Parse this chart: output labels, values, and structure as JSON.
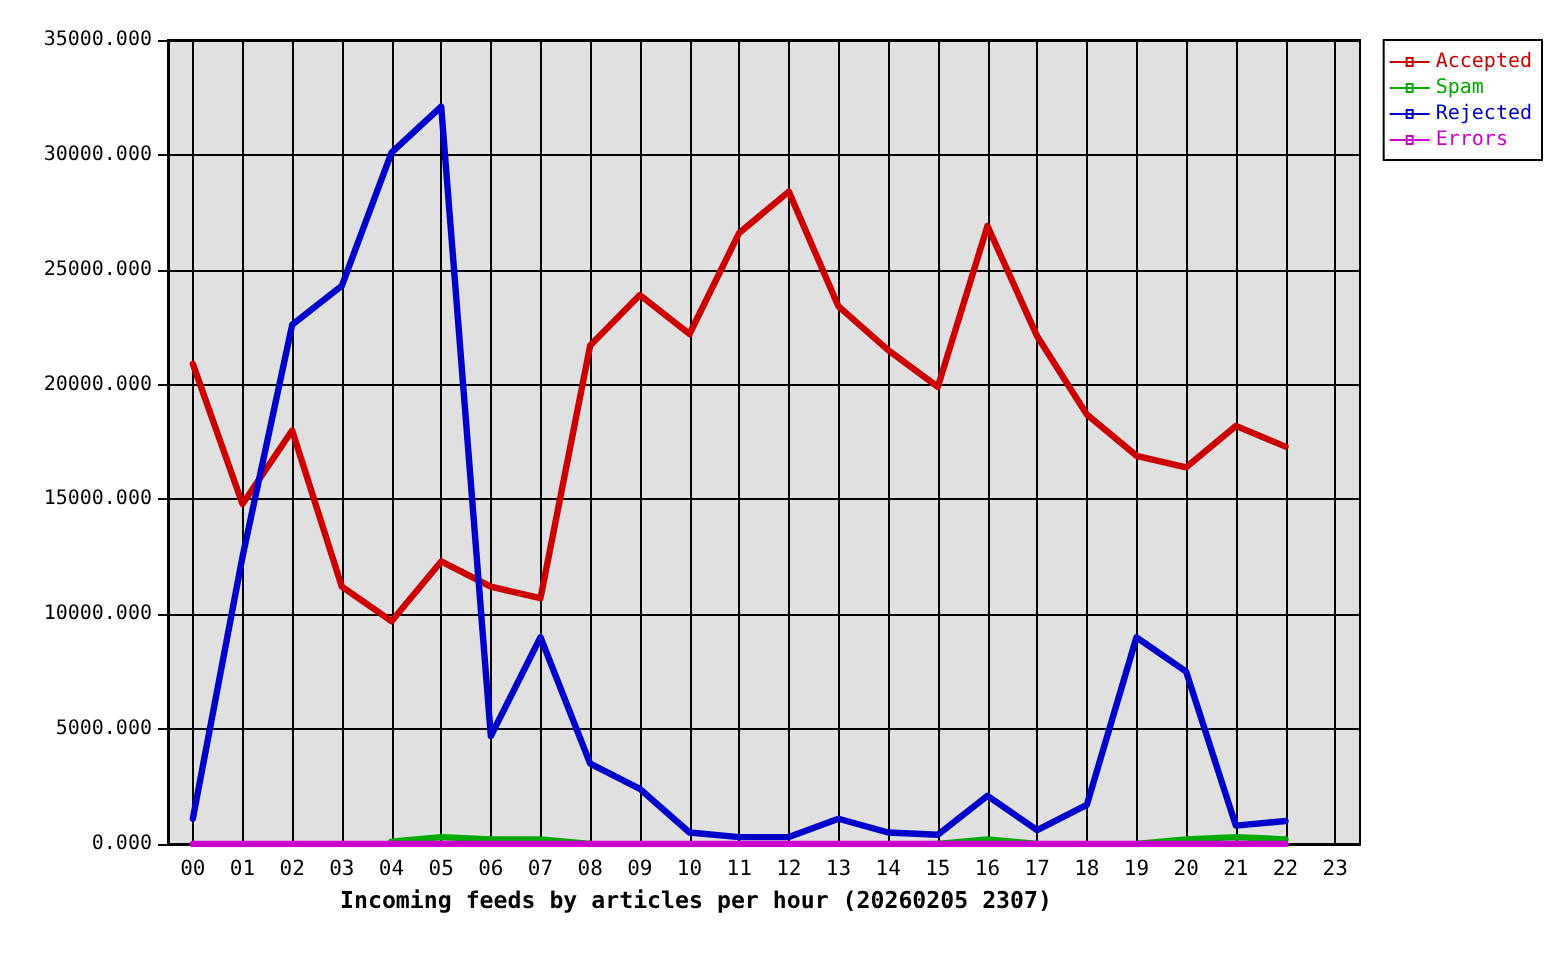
{
  "chart_data": {
    "type": "line",
    "xlabel": "Incoming feeds by articles per hour (20260205 2307)",
    "categories": [
      "00",
      "01",
      "02",
      "03",
      "04",
      "05",
      "06",
      "07",
      "08",
      "09",
      "10",
      "11",
      "12",
      "13",
      "14",
      "15",
      "16",
      "17",
      "18",
      "19",
      "20",
      "21",
      "22",
      "23"
    ],
    "series": [
      {
        "name": "Accepted",
        "color": "#cc0000",
        "values": [
          20900,
          14800,
          18000,
          11200,
          9700,
          12300,
          11200,
          10700,
          21700,
          23900,
          22200,
          26600,
          28400,
          23400,
          21500,
          19900,
          26900,
          22100,
          18700,
          16900,
          16400,
          18200,
          17300,
          null
        ]
      },
      {
        "name": "Spam",
        "color": "#00aa00",
        "values": [
          null,
          null,
          null,
          null,
          100,
          300,
          200,
          200,
          0,
          null,
          null,
          null,
          null,
          null,
          null,
          0,
          200,
          0,
          null,
          0,
          200,
          300,
          200,
          null
        ]
      },
      {
        "name": "Rejected",
        "color": "#0000cc",
        "values": [
          1100,
          12500,
          22600,
          24300,
          30100,
          32100,
          4700,
          9000,
          3500,
          2400,
          500,
          300,
          300,
          1100,
          500,
          400,
          2100,
          600,
          1700,
          9000,
          7500,
          800,
          1000,
          null
        ]
      },
      {
        "name": "Errors",
        "color": "#cc00cc",
        "values": [
          0,
          0,
          0,
          0,
          0,
          0,
          0,
          0,
          0,
          0,
          0,
          0,
          0,
          0,
          0,
          0,
          0,
          0,
          0,
          0,
          0,
          0,
          0,
          null
        ]
      }
    ],
    "ylim": [
      0,
      35000
    ],
    "yticks": [
      {
        "value": 0,
        "label": "0.000"
      },
      {
        "value": 5000,
        "label": "5000.000"
      },
      {
        "value": 10000,
        "label": "10000.000"
      },
      {
        "value": 15000,
        "label": "15000.000"
      },
      {
        "value": 20000,
        "label": "20000.000"
      },
      {
        "value": 25000,
        "label": "25000.000"
      },
      {
        "value": 30000,
        "label": "30000.000"
      },
      {
        "value": 35000,
        "label": "35000.000"
      }
    ],
    "grid": true,
    "legend": "top right"
  }
}
